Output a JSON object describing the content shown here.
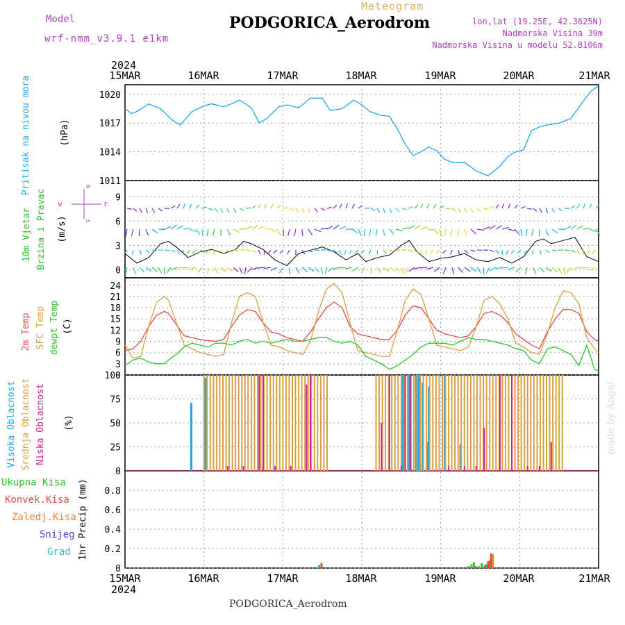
{
  "header": {
    "model_label": "Model",
    "model_name": "wrf-nmm_v3.9.1 e1km",
    "meteogram_label": "Meteogram",
    "station": "PODGORICA_Aerodrom",
    "lonlat": "lon,lat (19.25E, 42.3625N)",
    "elevation": "Nadmorska Visina 39m",
    "model_elevation": "Nadmorska Visina u modelu 52.8106m"
  },
  "footer": {
    "station": "PODGORICA_Aerodrom",
    "credit": "made by Angel"
  },
  "time_axis": {
    "year": "2024",
    "labels": [
      "15MAR",
      "16MAR",
      "17MAR",
      "18MAR",
      "19MAR",
      "20MAR",
      "21MAR"
    ]
  },
  "colors": {
    "pressure": "#1ea8e8",
    "temp2m": "#e84848",
    "sfc_temp": "#d8a040",
    "dewpt": "#28c828",
    "high_cloud": "#1ea8e8",
    "mid_cloud": "#d8a040",
    "low_cloud": "#d0208a",
    "total_precip": "#28c828",
    "conv_precip": "#e84848",
    "frozen_precip": "#f08030",
    "snow": "#4040d8",
    "hail": "#30c0c0"
  },
  "panels": {
    "pressure": {
      "label": "Pritisak na nivou mora",
      "unit": "(hPa)"
    },
    "wind": {
      "label1": "10m Vjetar",
      "label2": "Brzina i Pravac",
      "unit": "(m/s)",
      "compass": {
        "n": "N",
        "e": "E",
        "w": "W",
        "s": "S"
      }
    },
    "temp": {
      "label1": "2m Temp",
      "label2": "SFC Temp",
      "label3": "dewpt Temp",
      "unit": "(C)"
    },
    "cloud": {
      "label1": "Visoka Oblacnost",
      "label2": "Srednja Oblacnost",
      "label3": "Niska Oblacnost",
      "unit": "(%)"
    },
    "precip": {
      "legend": [
        "Ukupna Kisa",
        "Konvek.Kisa",
        "Zaledj.Kisa",
        "Snijeg",
        "Grad"
      ],
      "unit": "1hr Precip (mm)"
    }
  },
  "chart_data": [
    {
      "type": "line",
      "name": "pressure",
      "x_unit": "days since 15MAR 00z",
      "ylim": [
        1011,
        1021
      ],
      "yticks": [
        1011,
        1014,
        1017,
        1020
      ],
      "x": [
        0,
        0.08,
        0.15,
        0.3,
        0.45,
        0.6,
        0.7,
        0.85,
        1.0,
        1.1,
        1.25,
        1.35,
        1.45,
        1.6,
        1.7,
        1.8,
        1.95,
        2.05,
        2.2,
        2.35,
        2.5,
        2.6,
        2.75,
        2.9,
        3.0,
        3.1,
        3.25,
        3.35,
        3.45,
        3.55,
        3.65,
        3.75,
        3.85,
        3.95,
        4.05,
        4.15,
        4.3,
        4.45,
        4.6,
        4.75,
        4.85,
        4.95,
        5.05,
        5.15,
        5.25,
        5.35,
        5.5,
        5.65,
        5.8,
        5.9,
        6.0
      ],
      "values": [
        1018.5,
        1018.0,
        1018.2,
        1019.0,
        1018.5,
        1017.3,
        1016.8,
        1018.2,
        1018.8,
        1019.0,
        1018.7,
        1019.0,
        1019.4,
        1018.6,
        1017.0,
        1017.5,
        1018.7,
        1018.9,
        1018.6,
        1019.6,
        1019.6,
        1018.3,
        1018.5,
        1019.4,
        1018.9,
        1018.2,
        1017.8,
        1017.7,
        1016.4,
        1014.8,
        1013.6,
        1014.0,
        1014.5,
        1014.1,
        1013.2,
        1012.9,
        1012.9,
        1012.0,
        1011.5,
        1012.5,
        1013.5,
        1014.0,
        1014.2,
        1016.2,
        1016.6,
        1016.8,
        1017.0,
        1017.5,
        1019.2,
        1020.3,
        1020.9
      ]
    },
    {
      "type": "line",
      "name": "wind_speed",
      "ylim": [
        -1,
        11
      ],
      "yticks": [
        0,
        3,
        6,
        9
      ],
      "x": [
        0,
        0.15,
        0.3,
        0.45,
        0.55,
        0.65,
        0.8,
        0.95,
        1.1,
        1.25,
        1.4,
        1.5,
        1.6,
        1.75,
        1.9,
        2.05,
        2.2,
        2.35,
        2.5,
        2.65,
        2.8,
        2.95,
        3.05,
        3.2,
        3.35,
        3.5,
        3.6,
        3.7,
        3.85,
        4.0,
        4.15,
        4.3,
        4.45,
        4.6,
        4.75,
        4.9,
        5.05,
        5.2,
        5.3,
        5.4,
        5.55,
        5.7,
        5.85,
        6.0
      ],
      "values": [
        2.0,
        0.8,
        1.5,
        3.2,
        3.5,
        2.8,
        1.5,
        2.2,
        2.5,
        2.0,
        2.5,
        3.5,
        3.2,
        2.5,
        1.2,
        0.5,
        2.0,
        2.4,
        2.8,
        2.2,
        1.2,
        2.0,
        1.0,
        1.5,
        1.8,
        3.0,
        3.6,
        2.2,
        1.0,
        1.4,
        1.6,
        2.0,
        1.2,
        1.0,
        1.5,
        0.8,
        1.6,
        3.5,
        3.8,
        3.2,
        3.6,
        4.0,
        1.6,
        1.0
      ]
    },
    {
      "type": "line",
      "name": "temperature",
      "ylim": [
        0,
        26
      ],
      "yticks": [
        0,
        3,
        6,
        9,
        12,
        15,
        18,
        21,
        24
      ],
      "x": [
        0,
        0.1,
        0.2,
        0.3,
        0.4,
        0.5,
        0.55,
        0.65,
        0.75,
        0.85,
        0.95,
        1.05,
        1.15,
        1.25,
        1.35,
        1.45,
        1.55,
        1.65,
        1.75,
        1.85,
        1.95,
        2.05,
        2.15,
        2.25,
        2.35,
        2.45,
        2.55,
        2.65,
        2.75,
        2.85,
        2.95,
        3.05,
        3.15,
        3.25,
        3.35,
        3.45,
        3.55,
        3.65,
        3.75,
        3.85,
        3.95,
        4.05,
        4.15,
        4.25,
        4.35,
        4.45,
        4.55,
        4.65,
        4.75,
        4.85,
        4.95,
        5.05,
        5.15,
        5.25,
        5.35,
        5.45,
        5.55,
        5.65,
        5.75,
        5.85,
        5.95,
        6.0
      ],
      "series": [
        {
          "key": "temp2m",
          "values": [
            6.5,
            7.0,
            9.0,
            13.0,
            16.0,
            17.0,
            16.5,
            13.5,
            10.5,
            10.0,
            9.5,
            9.2,
            9.0,
            9.5,
            13.0,
            16.0,
            17.5,
            17.0,
            14.0,
            11.5,
            11.0,
            10.0,
            9.5,
            9.0,
            11.5,
            15.0,
            18.0,
            19.5,
            18.0,
            13.0,
            11.0,
            10.5,
            10.0,
            9.5,
            9.5,
            12.0,
            16.0,
            18.5,
            18.0,
            15.0,
            12.0,
            11.0,
            10.5,
            10.0,
            10.5,
            13.0,
            16.5,
            17.0,
            16.0,
            14.0,
            11.0,
            9.5,
            8.0,
            7.0,
            11.5,
            15.0,
            17.5,
            17.5,
            16.5,
            11.5,
            9.5,
            9.0
          ]
        },
        {
          "key": "sfc_temp",
          "values": [
            8.0,
            4.5,
            5.0,
            13.0,
            19.5,
            21.0,
            20.0,
            14.0,
            8.0,
            7.0,
            6.0,
            5.5,
            5.0,
            5.5,
            14.0,
            21.0,
            22.0,
            21.0,
            14.0,
            8.0,
            7.5,
            6.5,
            6.0,
            5.5,
            9.0,
            17.0,
            23.0,
            24.5,
            22.0,
            14.0,
            6.5,
            6.0,
            5.5,
            5.0,
            5.0,
            12.0,
            20.0,
            23.0,
            21.5,
            15.0,
            8.0,
            7.5,
            7.0,
            6.5,
            7.5,
            13.0,
            20.0,
            21.0,
            19.0,
            15.0,
            8.5,
            7.5,
            6.0,
            5.5,
            11.0,
            18.0,
            22.5,
            22.0,
            19.0,
            10.0,
            7.0,
            6.0
          ]
        },
        {
          "key": "dewpt",
          "values": [
            2.5,
            4.0,
            4.5,
            3.5,
            3.0,
            3.0,
            4.0,
            5.5,
            7.5,
            8.5,
            8.0,
            7.5,
            8.5,
            8.5,
            8.0,
            9.0,
            9.5,
            8.5,
            9.0,
            8.5,
            9.0,
            9.5,
            9.0,
            9.0,
            9.5,
            10.0,
            10.0,
            9.0,
            8.5,
            9.0,
            8.0,
            5.0,
            4.0,
            3.0,
            1.5,
            2.5,
            4.0,
            5.5,
            7.5,
            8.5,
            8.5,
            8.5,
            8.0,
            9.0,
            10.0,
            9.5,
            9.5,
            9.0,
            8.5,
            8.0,
            7.0,
            6.5,
            4.0,
            3.0,
            7.0,
            7.5,
            6.5,
            5.5,
            2.5,
            8.0,
            1.5,
            1.0
          ]
        }
      ]
    },
    {
      "type": "bar",
      "name": "cloud_cover",
      "ylim": [
        0,
        100
      ],
      "yticks": [
        0,
        25,
        50,
        75,
        100
      ],
      "series": [
        {
          "key": "high_cloud",
          "x": [
            0.84,
            1.02,
            3.52,
            3.6,
            3.69,
            3.72,
            3.77,
            3.83,
            3.85,
            4.05,
            4.25
          ],
          "values": [
            71,
            97,
            100,
            100,
            100,
            100,
            92,
            30,
            88,
            100,
            28
          ]
        },
        {
          "key": "mid_cloud",
          "x": [
            1.0,
            1.04,
            1.08,
            1.12,
            1.16,
            1.2,
            1.24,
            1.28,
            1.32,
            1.36,
            1.4,
            1.44,
            1.48,
            1.52,
            1.56,
            1.6,
            1.64,
            1.68,
            1.72,
            1.76,
            1.8,
            1.84,
            1.88,
            1.92,
            1.96,
            2.0,
            2.04,
            2.08,
            2.12,
            2.16,
            2.2,
            2.24,
            2.28,
            2.32,
            2.36,
            2.4,
            2.44,
            2.48,
            2.52,
            2.56,
            3.18,
            3.22,
            3.26,
            3.3,
            3.34,
            3.38,
            3.42,
            3.46,
            3.5,
            3.54,
            3.58,
            3.62,
            3.66,
            3.7,
            3.74,
            3.78,
            3.82,
            3.86,
            3.9,
            3.94,
            3.98,
            4.02,
            4.06,
            4.1,
            4.14,
            4.18,
            4.22,
            4.26,
            4.3,
            4.34,
            4.38,
            4.42,
            4.46,
            4.5,
            4.54,
            4.58,
            4.62,
            4.66,
            4.7,
            4.74,
            4.78,
            4.82,
            4.86,
            4.9,
            4.94,
            4.98,
            5.02,
            5.06,
            5.1,
            5.14,
            5.18,
            5.22,
            5.26,
            5.3,
            5.34,
            5.38,
            5.42,
            5.46,
            5.5,
            5.54
          ],
          "values": [
            100,
            100,
            100,
            100,
            100,
            100,
            100,
            100,
            100,
            100,
            100,
            100,
            100,
            100,
            100,
            100,
            100,
            100,
            100,
            100,
            100,
            100,
            100,
            100,
            100,
            100,
            100,
            100,
            100,
            100,
            100,
            100,
            100,
            100,
            100,
            100,
            100,
            100,
            100,
            100,
            100,
            100,
            100,
            100,
            100,
            100,
            100,
            100,
            100,
            100,
            100,
            100,
            100,
            100,
            100,
            100,
            100,
            100,
            100,
            100,
            100,
            100,
            100,
            100,
            100,
            100,
            100,
            100,
            100,
            100,
            100,
            100,
            100,
            100,
            100,
            100,
            100,
            100,
            100,
            100,
            100,
            100,
            100,
            100,
            100,
            100,
            100,
            100,
            100,
            100,
            100,
            100,
            100,
            100,
            100,
            100,
            100,
            100,
            100,
            100
          ]
        },
        {
          "key": "low_cloud",
          "x": [
            1.3,
            1.5,
            1.7,
            1.75,
            1.9,
            2.1,
            2.3,
            2.35,
            3.25,
            3.35,
            3.5,
            3.55,
            3.62,
            4.1,
            4.3,
            4.45,
            4.55,
            4.75,
            4.9,
            5.1,
            5.25,
            5.4
          ],
          "values": [
            5,
            5,
            100,
            100,
            5,
            5,
            90,
            100,
            50,
            100,
            5,
            100,
            100,
            5,
            5,
            5,
            45,
            100,
            100,
            5,
            5,
            30
          ]
        }
      ]
    },
    {
      "type": "bar",
      "name": "precipitation",
      "ylim": [
        0,
        1.0
      ],
      "yticks": [
        0,
        0.2,
        0.4,
        0.6,
        0.8
      ],
      "series": [
        {
          "key": "total_precip",
          "x": [
            2.46,
            4.35,
            4.39,
            4.42,
            4.48,
            4.52,
            4.58,
            4.62
          ],
          "values": [
            0.03,
            0.02,
            0.04,
            0.06,
            0.02,
            0.05,
            0.04,
            0.08
          ]
        },
        {
          "key": "conv_precip",
          "x": [
            2.49,
            4.44,
            4.56,
            4.6,
            4.64
          ],
          "values": [
            0.05,
            0.02,
            0.03,
            0.07,
            0.15
          ]
        },
        {
          "key": "frozen_precip",
          "x": [
            4.66
          ],
          "values": [
            0.14
          ]
        }
      ]
    }
  ]
}
